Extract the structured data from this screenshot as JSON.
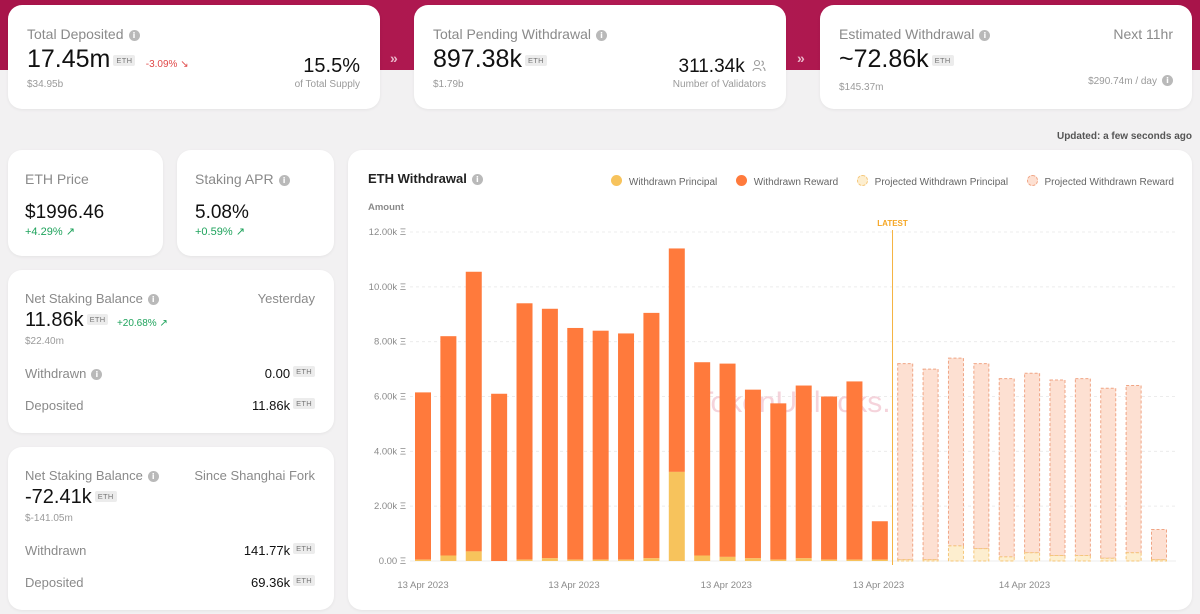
{
  "top": {
    "deposited": {
      "label": "Total Deposited",
      "value": "17.45m",
      "unit": "ETH",
      "change": "-3.09%",
      "usd": "$34.95b",
      "supply_pct": "15.5%",
      "supply_label": "of Total Supply"
    },
    "pending": {
      "label": "Total Pending Withdrawal",
      "value": "897.38k",
      "unit": "ETH",
      "usd": "$1.79b",
      "validators": "311.34k",
      "validators_label": "Number of Validators"
    },
    "estimated": {
      "label": "Estimated Withdrawal",
      "value": "~72.86k",
      "unit": "ETH",
      "usd": "$145.37m",
      "next": "Next 11hr",
      "per_day": "$290.74m / day"
    }
  },
  "updated": "Updated: a few seconds ago",
  "eth_price": {
    "label": "ETH Price",
    "value": "$1996.46",
    "change": "+4.29%"
  },
  "staking_apr": {
    "label": "Staking APR",
    "value": "5.08%",
    "change": "+0.59%"
  },
  "net_yesterday": {
    "label": "Net Staking Balance",
    "period": "Yesterday",
    "value": "11.86k",
    "unit": "ETH",
    "change": "+20.68%",
    "usd": "$22.40m",
    "withdrawn_label": "Withdrawn",
    "withdrawn_value": "0.00",
    "deposited_label": "Deposited",
    "deposited_value": "11.86k"
  },
  "net_shanghai": {
    "label": "Net Staking Balance",
    "period": "Since Shanghai Fork",
    "value": "-72.41k",
    "unit": "ETH",
    "usd": "$-141.05m",
    "withdrawn_label": "Withdrawn",
    "withdrawn_value": "141.77k",
    "deposited_label": "Deposited",
    "deposited_value": "69.36k"
  },
  "chart_data": {
    "type": "bar",
    "title": "ETH Withdrawal",
    "ylabel": "Amount",
    "ylim": [
      0,
      12000
    ],
    "yticks": [
      "0.00 Ξ",
      "2.00k Ξ",
      "4.00k Ξ",
      "6.00k Ξ",
      "8.00k Ξ",
      "10.00k Ξ",
      "12.00k Ξ"
    ],
    "xticks": [
      "13 Apr 2023",
      "13 Apr 2023",
      "13 Apr 2023",
      "13 Apr 2023",
      "14 Apr 2023"
    ],
    "latest_label": "LATEST",
    "watermark": "TokenUnlocks.",
    "legend_position": "top-right",
    "colors": {
      "principal": "#f7c35c",
      "reward": "#ff7a3c",
      "projected_principal": "#fdeecf",
      "projected_reward": "#fde0d2"
    },
    "series": [
      {
        "name": "Withdrawn Principal",
        "values": [
          50,
          200,
          350,
          0,
          50,
          100,
          50,
          50,
          50,
          100,
          3250,
          200,
          150,
          100,
          50,
          100,
          50,
          50,
          50,
          null,
          null,
          null,
          null,
          null,
          null,
          null,
          null,
          null,
          null,
          null
        ]
      },
      {
        "name": "Withdrawn Reward",
        "values": [
          6100,
          8000,
          10200,
          6100,
          9350,
          9100,
          8450,
          8350,
          8250,
          8950,
          8150,
          7050,
          7050,
          6150,
          5700,
          6300,
          5950,
          6500,
          1400,
          null,
          null,
          null,
          null,
          null,
          null,
          null,
          null,
          null,
          null,
          null
        ]
      },
      {
        "name": "Projected Withdrawn Principal",
        "values": [
          null,
          null,
          null,
          null,
          null,
          null,
          null,
          null,
          null,
          null,
          null,
          null,
          null,
          null,
          null,
          null,
          null,
          null,
          null,
          50,
          50,
          550,
          450,
          150,
          300,
          200,
          200,
          100,
          300,
          50
        ]
      },
      {
        "name": "Projected Withdrawn Reward",
        "values": [
          null,
          null,
          null,
          null,
          null,
          null,
          null,
          null,
          null,
          null,
          null,
          null,
          null,
          null,
          null,
          null,
          null,
          null,
          null,
          7150,
          6950,
          6850,
          6750,
          6500,
          6550,
          6400,
          6450,
          6200,
          6100,
          1100
        ]
      }
    ]
  }
}
